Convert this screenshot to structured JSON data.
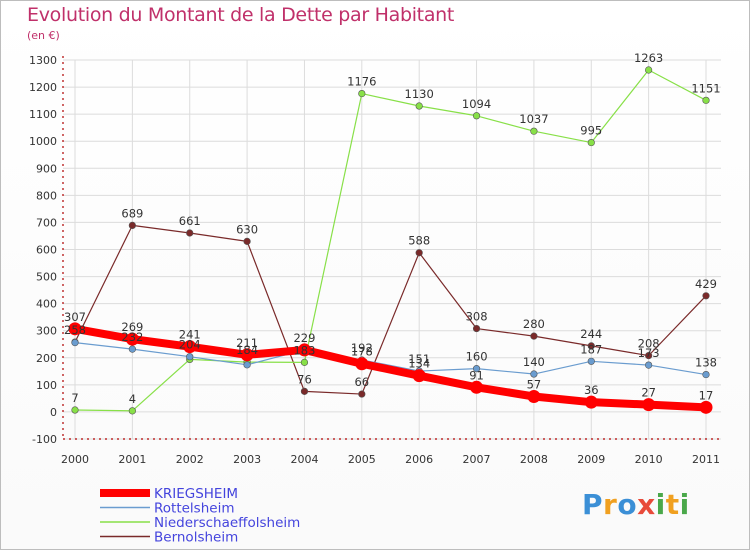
{
  "title": "Evolution du Montant de la Dette par Habitant",
  "subtitle": "(en €)",
  "logo": {
    "text": "Proxiti",
    "colors": [
      "#3b8fd6",
      "#f0a020",
      "#3b8fd6",
      "#e84a3a",
      "#4aa84a",
      "#f0a020",
      "#4aa84a"
    ]
  },
  "chart_data": {
    "type": "line",
    "title": "Evolution du Montant de la Dette par Habitant",
    "subtitle": "(en €)",
    "xlabel": "",
    "ylabel": "",
    "x": [
      "2000",
      "2001",
      "2002",
      "2003",
      "2004",
      "2005",
      "2006",
      "2007",
      "2008",
      "2009",
      "2010",
      "2011"
    ],
    "ylim": [
      -100,
      1300
    ],
    "yticks": [
      -100,
      0,
      100,
      200,
      300,
      400,
      500,
      600,
      700,
      800,
      900,
      1000,
      1100,
      1200,
      1300
    ],
    "grid": true,
    "legend": "bottom-left",
    "series": [
      {
        "name": "KRIEGSHEIM",
        "color": "#ff0000",
        "values": [
          307,
          269,
          241,
          211,
          229,
          178,
          134,
          91,
          57,
          36,
          27,
          17
        ]
      },
      {
        "name": "Rottelsheim",
        "color": "#6a9ccf",
        "values": [
          256,
          232,
          204,
          174,
          229,
          192,
          151,
          160,
          140,
          187,
          173,
          138
        ]
      },
      {
        "name": "Niederschaeffolsheim",
        "color": "#88e048",
        "values": [
          7,
          4,
          194,
          184,
          183,
          1176,
          1130,
          1094,
          1037,
          995,
          1263,
          1151
        ]
      },
      {
        "name": "Bernolsheim",
        "color": "#7a2a2a",
        "values": [
          258,
          689,
          661,
          630,
          76,
          66,
          588,
          308,
          280,
          244,
          208,
          429
        ]
      }
    ],
    "data_labels": [
      {
        "text": "307",
        "x": 0,
        "y": 307
      },
      {
        "text": "258",
        "x": 0,
        "y": 258
      },
      {
        "text": "7",
        "x": 0,
        "y": 7
      },
      {
        "text": "4",
        "x": 1,
        "y": 4
      },
      {
        "text": "689",
        "x": 1,
        "y": 689
      },
      {
        "text": "269",
        "x": 1,
        "y": 269
      },
      {
        "text": "232",
        "x": 1,
        "y": 232
      },
      {
        "text": "661",
        "x": 2,
        "y": 661
      },
      {
        "text": "241",
        "x": 2,
        "y": 241
      },
      {
        "text": "204",
        "x": 2,
        "y": 204
      },
      {
        "text": "630",
        "x": 3,
        "y": 630
      },
      {
        "text": "211",
        "x": 3,
        "y": 211
      },
      {
        "text": "184",
        "x": 3,
        "y": 184
      },
      {
        "text": "229",
        "x": 4,
        "y": 229
      },
      {
        "text": "183",
        "x": 4,
        "y": 183
      },
      {
        "text": "76",
        "x": 4,
        "y": 76
      },
      {
        "text": "1176",
        "x": 5,
        "y": 1176
      },
      {
        "text": "192",
        "x": 5,
        "y": 192
      },
      {
        "text": "178",
        "x": 5,
        "y": 178
      },
      {
        "text": "66",
        "x": 5,
        "y": 66
      },
      {
        "text": "1130",
        "x": 6,
        "y": 1130
      },
      {
        "text": "588",
        "x": 6,
        "y": 588
      },
      {
        "text": "134",
        "x": 6,
        "y": 134
      },
      {
        "text": "151",
        "x": 6,
        "y": 151
      },
      {
        "text": "1094",
        "x": 7,
        "y": 1094
      },
      {
        "text": "308",
        "x": 7,
        "y": 308
      },
      {
        "text": "160",
        "x": 7,
        "y": 160
      },
      {
        "text": "91",
        "x": 7,
        "y": 91
      },
      {
        "text": "1037",
        "x": 8,
        "y": 1037
      },
      {
        "text": "280",
        "x": 8,
        "y": 280
      },
      {
        "text": "140",
        "x": 8,
        "y": 140
      },
      {
        "text": "57",
        "x": 8,
        "y": 57
      },
      {
        "text": "995",
        "x": 9,
        "y": 995
      },
      {
        "text": "244",
        "x": 9,
        "y": 244
      },
      {
        "text": "187",
        "x": 9,
        "y": 187
      },
      {
        "text": "36",
        "x": 9,
        "y": 36
      },
      {
        "text": "1263",
        "x": 10,
        "y": 1263
      },
      {
        "text": "208",
        "x": 10,
        "y": 208
      },
      {
        "text": "173",
        "x": 10,
        "y": 173
      },
      {
        "text": "27",
        "x": 10,
        "y": 27
      },
      {
        "text": "1151",
        "x": 11,
        "y": 1151
      },
      {
        "text": "429",
        "x": 11,
        "y": 429
      },
      {
        "text": "138",
        "x": 11,
        "y": 138
      },
      {
        "text": "17",
        "x": 11,
        "y": 17
      }
    ]
  }
}
